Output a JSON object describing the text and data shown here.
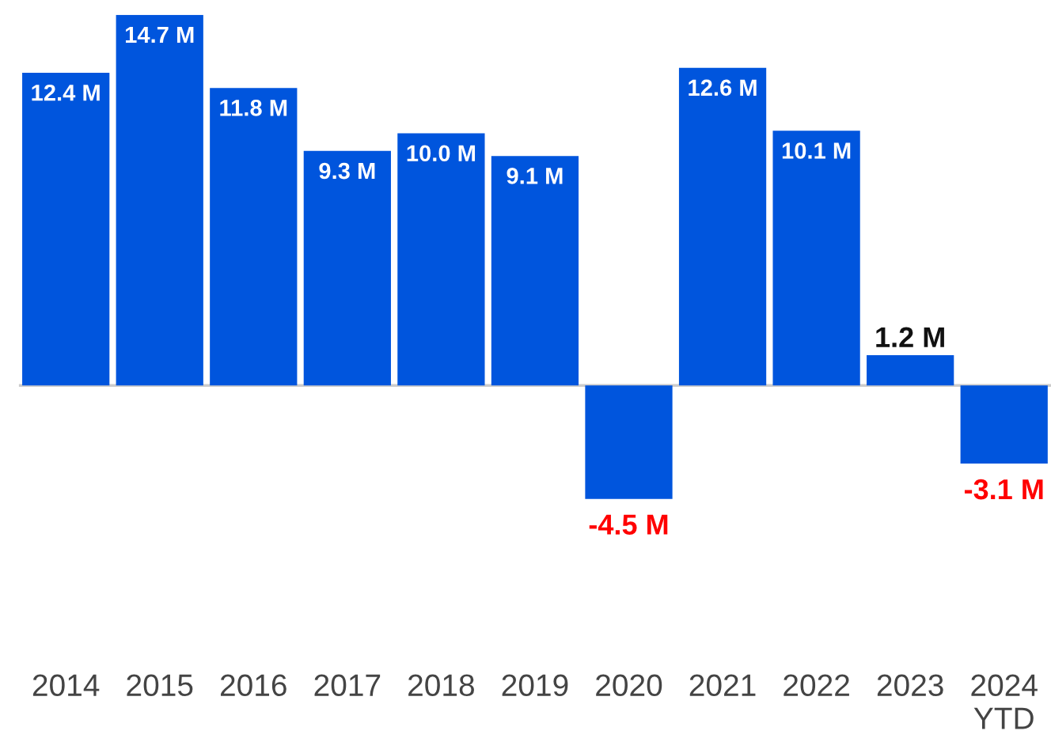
{
  "chart_data": {
    "type": "bar",
    "categories": [
      "2014",
      "2015",
      "2016",
      "2017",
      "2018",
      "2019",
      "2020",
      "2021",
      "2022",
      "2023",
      "2024\nYTD"
    ],
    "values": [
      12.4,
      14.7,
      11.8,
      9.3,
      10.0,
      9.1,
      -4.5,
      12.6,
      10.1,
      1.2,
      -3.1
    ],
    "color": "#0055dd",
    "value_labels": [
      "12.4 M",
      "14.7 M",
      "11.8 M",
      "9.3 M",
      "10.0 M",
      "9.1 M",
      "-4.5 M",
      "12.6 M",
      "10.1 M",
      "1.2 M",
      "-3.1 M"
    ],
    "grid": false,
    "legend": false
  }
}
